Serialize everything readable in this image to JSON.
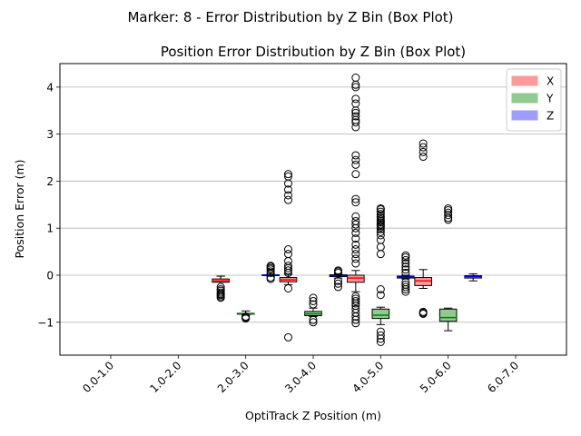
{
  "suptitle": "Marker: 8 - Error Distribution by Z Bin (Box Plot)",
  "chart_data": {
    "type": "box",
    "title": "Position Error Distribution by Z Bin (Box Plot)",
    "xlabel": "OptiTrack Z Position (m)",
    "ylabel": "Position Error (m)",
    "categories": [
      "0.0-1.0",
      "1.0-2.0",
      "2.0-3.0",
      "3.0-4.0",
      "4.0-5.0",
      "5.0-6.0",
      "6.0-7.0"
    ],
    "ylim": [
      -1.7,
      4.5
    ],
    "yticks": [
      -1,
      0,
      1,
      2,
      3,
      4
    ],
    "grid": "y",
    "legend_position": "top-right",
    "series": [
      {
        "name": "X",
        "color": "#ff9a9a",
        "median_color": "#ff0000",
        "boxes": [
          null,
          null,
          {
            "whislo": -0.02,
            "q1": -0.15,
            "med": -0.12,
            "q3": -0.08,
            "whishi": -0.02,
            "fliers": [
              -0.25,
              -0.3,
              -0.33,
              -0.37,
              -0.4,
              -0.42,
              -0.45,
              -0.48
            ]
          },
          {
            "whislo": -0.2,
            "q1": -0.14,
            "med": -0.1,
            "q3": -0.05,
            "whishi": 0.02,
            "fliers": [
              -0.28,
              -1.32,
              0.05,
              0.1,
              0.15,
              0.2,
              0.3,
              0.45,
              0.55,
              1.6,
              1.7,
              1.82,
              1.95,
              2.1,
              2.15
            ]
          },
          {
            "whislo": -0.35,
            "q1": -0.15,
            "med": -0.06,
            "q3": 0.0,
            "whishi": 0.1,
            "fliers": [
              -0.45,
              -0.5,
              -0.55,
              -0.6,
              -0.65,
              -0.72,
              -0.8,
              -0.88,
              -0.95,
              -1.02,
              0.25,
              0.35,
              0.45,
              0.55,
              0.65,
              0.78,
              0.9,
              1.0,
              1.08,
              1.15,
              1.25,
              1.55,
              1.62,
              2.15,
              2.35,
              2.45,
              2.55,
              3.15,
              3.25,
              3.3,
              3.38,
              3.45,
              3.5,
              3.65,
              3.75,
              4.0,
              4.05,
              4.2
            ]
          },
          {
            "whislo": -0.28,
            "q1": -0.22,
            "med": -0.12,
            "q3": -0.05,
            "whishi": 0.12,
            "fliers": [
              -0.78,
              -0.8,
              -0.82,
              2.52,
              2.62,
              2.72,
              2.8
            ]
          },
          null
        ]
      },
      {
        "name": "Y",
        "color": "#90ca90",
        "median_color": "#008000",
        "boxes": [
          null,
          null,
          {
            "whislo": -0.85,
            "q1": -0.83,
            "med": -0.82,
            "q3": -0.81,
            "whishi": -0.76,
            "fliers": [
              -0.88,
              -0.9,
              -0.92
            ]
          },
          {
            "whislo": -0.88,
            "q1": -0.86,
            "med": -0.82,
            "q3": -0.77,
            "whishi": -0.7,
            "fliers": [
              -0.48,
              -0.55,
              -0.62,
              -0.95,
              -1.0
            ]
          },
          {
            "whislo": -1.05,
            "q1": -0.92,
            "med": -0.85,
            "q3": -0.72,
            "whishi": -0.68,
            "fliers": [
              -1.2,
              -1.28,
              -1.35,
              -1.42,
              -0.42,
              -0.3,
              0.45,
              0.6,
              0.75,
              0.85,
              0.92,
              0.98,
              1.02,
              1.05,
              1.08,
              1.12,
              1.15,
              1.18,
              1.22,
              1.25,
              1.3,
              1.35,
              1.4,
              1.42
            ]
          },
          {
            "whislo": -1.18,
            "q1": -0.98,
            "med": -0.9,
            "q3": -0.72,
            "whishi": -0.7,
            "fliers": [
              1.18,
              1.22,
              1.28,
              1.33,
              1.38,
              1.42
            ]
          },
          null
        ]
      },
      {
        "name": "Z",
        "color": "#9d9dff",
        "median_color": "#0000ff",
        "boxes": [
          null,
          null,
          {
            "whislo": -0.02,
            "q1": -0.01,
            "med": 0.0,
            "q3": 0.01,
            "whishi": 0.02,
            "fliers": [
              -0.05,
              -0.08,
              0.05,
              0.08,
              0.12,
              0.15,
              0.18,
              0.2
            ]
          },
          {
            "whislo": -0.06,
            "q1": -0.03,
            "med": -0.01,
            "q3": 0.01,
            "whishi": 0.03,
            "fliers": [
              -0.12,
              -0.18,
              -0.25,
              0.05,
              0.08,
              0.1
            ]
          },
          {
            "whislo": -0.08,
            "q1": -0.06,
            "med": -0.04,
            "q3": -0.02,
            "whishi": 0.0,
            "fliers": [
              -0.15,
              -0.2,
              -0.25,
              -0.3,
              -0.35,
              0.05,
              0.12,
              0.18,
              0.25,
              0.32,
              0.38,
              0.42
            ]
          },
          {
            "whislo": -0.12,
            "q1": -0.06,
            "med": -0.03,
            "q3": -0.01,
            "whishi": 0.03,
            "fliers": []
          },
          null
        ]
      }
    ]
  }
}
